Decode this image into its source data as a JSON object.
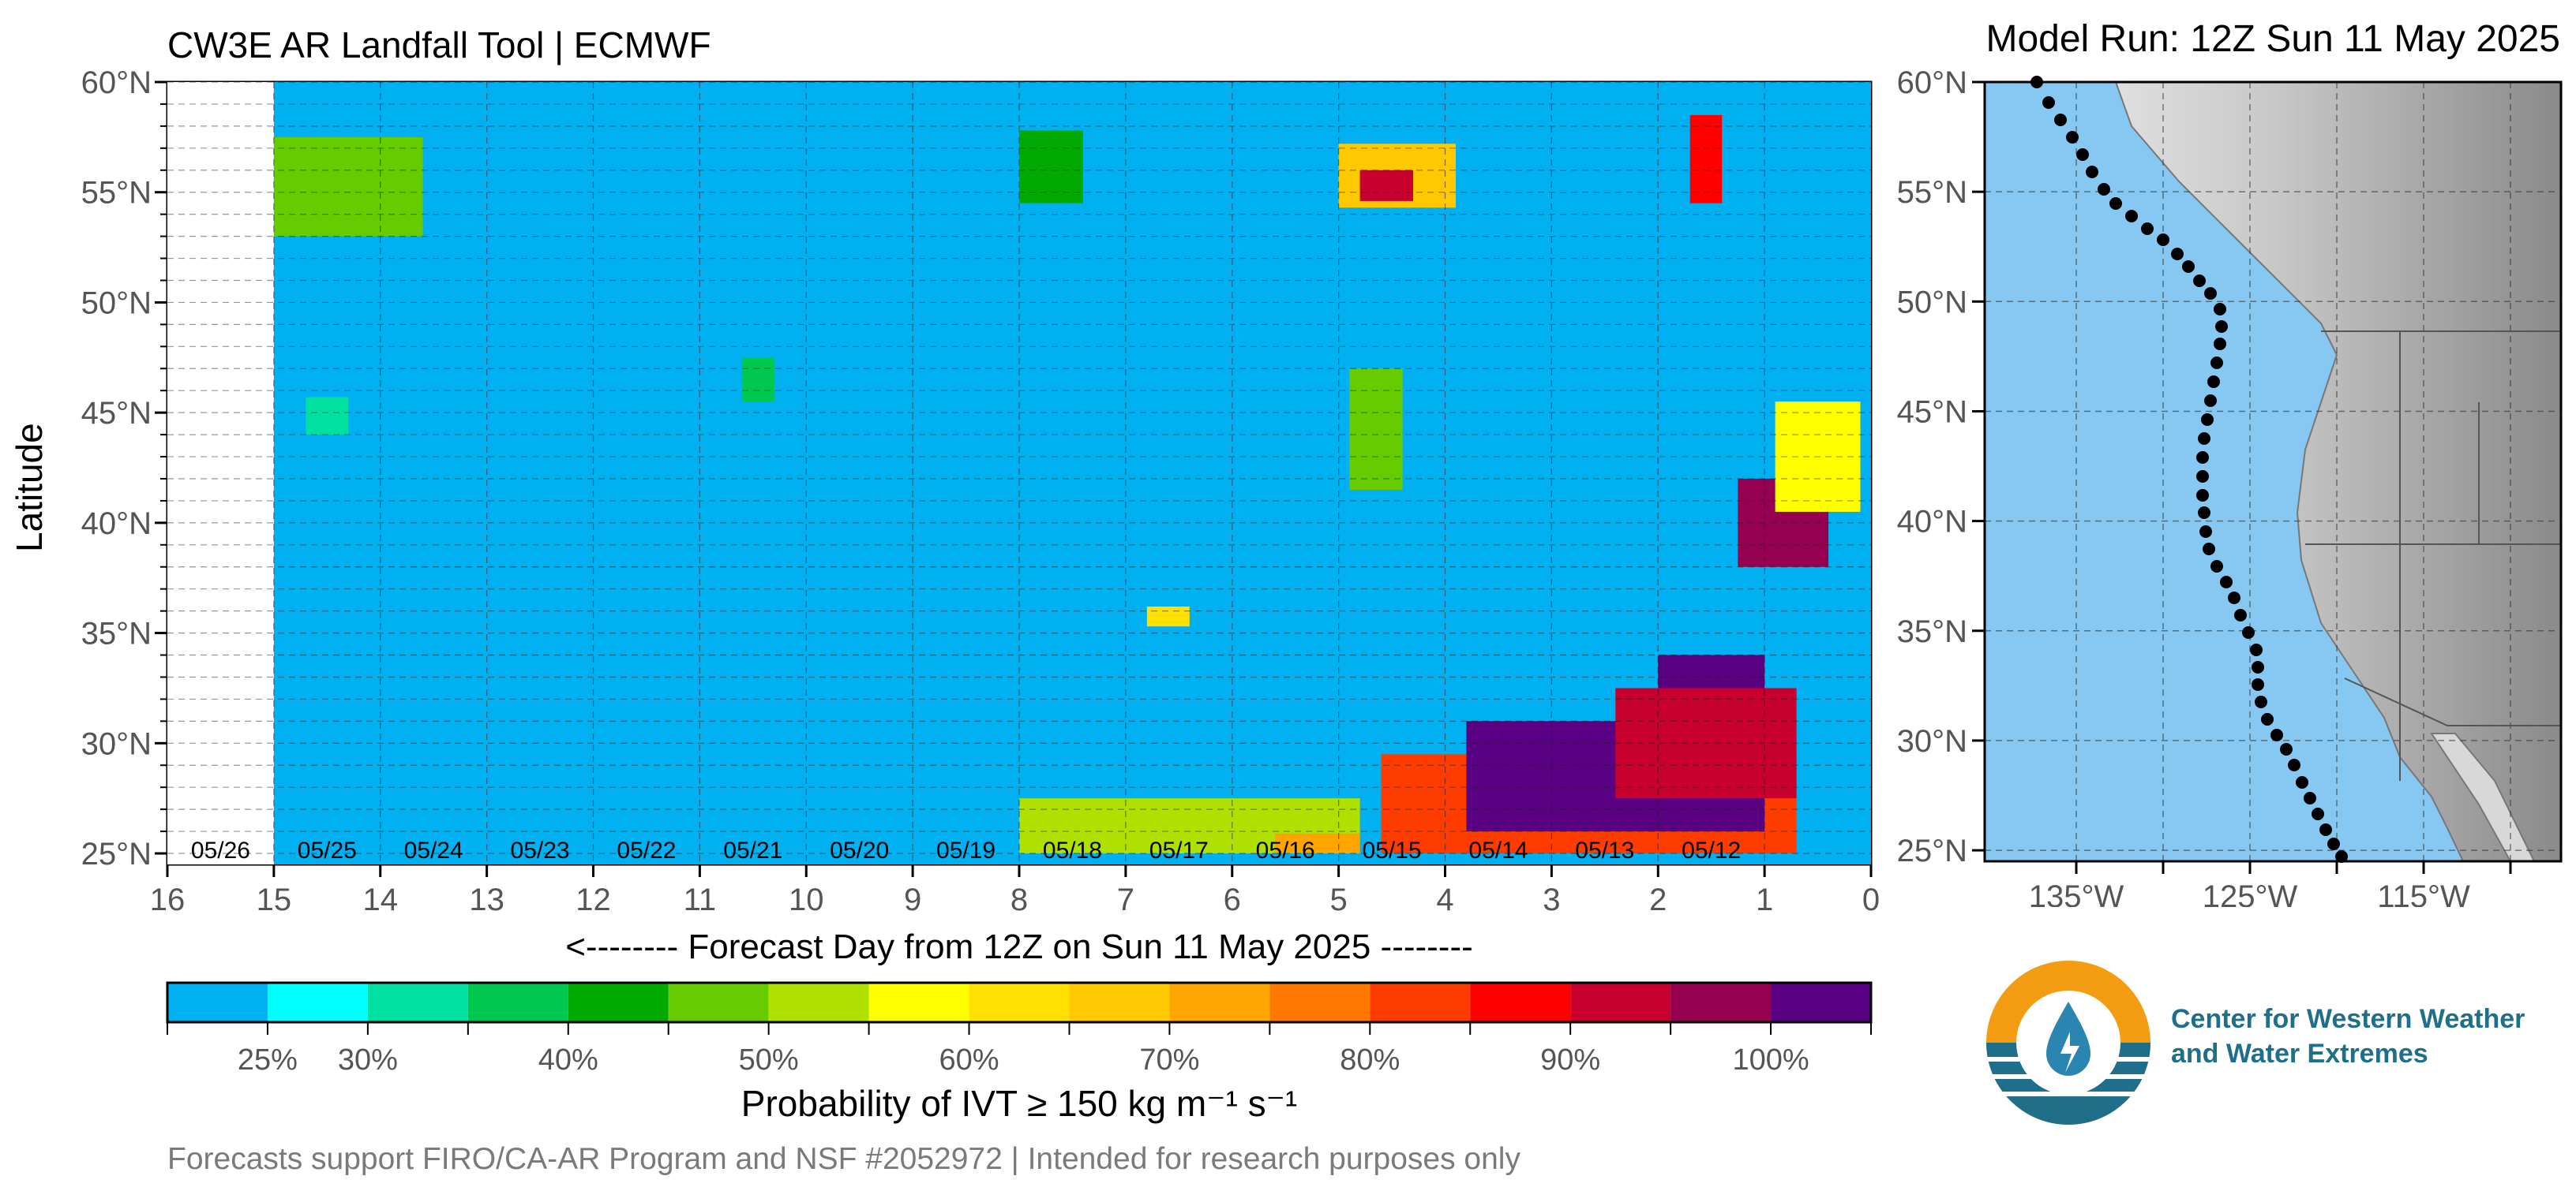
{
  "header": {
    "title": "CW3E AR Landfall Tool | ECMWF",
    "model_run": "Model Run: 12Z Sun 11 May 2025"
  },
  "axes": {
    "ylabel": "Latitude",
    "xlabel": "<-------- Forecast Day from 12Z on Sun 11 May 2025 --------"
  },
  "colorbar": {
    "label": "Probability of IVT ≥ 150 kg m⁻¹ s⁻¹",
    "tick_labels": [
      "25%",
      "30%",
      "40%",
      "50%",
      "60%",
      "70%",
      "80%",
      "90%",
      "100%"
    ],
    "colors": [
      "#00B0F0",
      "#00FFFF",
      "#00E0A0",
      "#00C84F",
      "#00AA00",
      "#66CC00",
      "#B0E000",
      "#FFFF00",
      "#FFE000",
      "#FFC800",
      "#FFA500",
      "#FF7800",
      "#FF3C00",
      "#FF0000",
      "#C8002D",
      "#960050",
      "#5A0082"
    ]
  },
  "footer": "Forecasts support FIRO/CA-AR Program and NSF #2052972 | Intended for research purposes only",
  "logo": {
    "line1": "Center for Western Weather",
    "line2": "and Water Extremes"
  },
  "map": {
    "lat_labels": [
      "60°N",
      "55°N",
      "50°N",
      "45°N",
      "40°N",
      "35°N",
      "30°N",
      "25°N"
    ],
    "lon_labels": [
      "135°W",
      "125°W",
      "115°W"
    ],
    "ocean_color": "#86C8F2"
  },
  "chart_data": {
    "type": "heatmap",
    "title": "CW3E AR Landfall Tool | ECMWF",
    "xlabel": "<-------- Forecast Day from 12Z on Sun 11 May 2025 --------",
    "ylabel": "Latitude",
    "x_range": [
      16,
      0
    ],
    "x_ticks": [
      16,
      15,
      14,
      13,
      12,
      11,
      10,
      9,
      8,
      7,
      6,
      5,
      4,
      3,
      2,
      1,
      0
    ],
    "y_range": [
      24.5,
      60
    ],
    "y_ticks": [
      60,
      55,
      50,
      45,
      40,
      35,
      30,
      25
    ],
    "y_tick_labels": [
      "60°N",
      "55°N",
      "50°N",
      "45°N",
      "40°N",
      "35°N",
      "30°N",
      "25°N"
    ],
    "date_labels": [
      {
        "day": 15.5,
        "label": "05/26"
      },
      {
        "day": 14.5,
        "label": "05/25"
      },
      {
        "day": 13.5,
        "label": "05/24"
      },
      {
        "day": 12.5,
        "label": "05/23"
      },
      {
        "day": 11.5,
        "label": "05/22"
      },
      {
        "day": 10.5,
        "label": "05/21"
      },
      {
        "day": 9.5,
        "label": "05/20"
      },
      {
        "day": 8.5,
        "label": "05/19"
      },
      {
        "day": 7.5,
        "label": "05/18"
      },
      {
        "day": 6.5,
        "label": "05/17"
      },
      {
        "day": 5.5,
        "label": "05/16"
      },
      {
        "day": 4.5,
        "label": "05/15"
      },
      {
        "day": 3.5,
        "label": "05/14"
      },
      {
        "day": 2.5,
        "label": "05/13"
      },
      {
        "day": 1.5,
        "label": "05/12"
      }
    ],
    "no_data_region": {
      "day_from": 16,
      "day_to": 15
    },
    "background_probability": 20,
    "features": [
      {
        "day_from": 15.0,
        "day_to": 13.6,
        "lat_from": 53.0,
        "lat_to": 57.5,
        "probability": 45
      },
      {
        "day_from": 14.6,
        "day_to": 14.2,
        "lat_from": 54.5,
        "lat_to": 56.5,
        "probability": 48
      },
      {
        "day_from": 14.7,
        "day_to": 14.3,
        "lat_from": 44.0,
        "lat_to": 45.7,
        "probability": 30
      },
      {
        "day_from": 8.0,
        "day_to": 7.4,
        "lat_from": 54.5,
        "lat_to": 57.8,
        "probability": 40
      },
      {
        "day_from": 5.0,
        "day_to": 3.9,
        "lat_from": 54.3,
        "lat_to": 57.2,
        "probability": 65
      },
      {
        "day_from": 4.8,
        "day_to": 4.3,
        "lat_from": 54.6,
        "lat_to": 56.0,
        "probability": 90
      },
      {
        "day_from": 4.9,
        "day_to": 4.4,
        "lat_from": 41.5,
        "lat_to": 47.0,
        "probability": 45
      },
      {
        "day_from": 10.6,
        "day_to": 10.3,
        "lat_from": 45.5,
        "lat_to": 47.5,
        "probability": 35
      },
      {
        "day_from": 6.8,
        "day_to": 6.4,
        "lat_from": 35.3,
        "lat_to": 36.2,
        "probability": 60
      },
      {
        "day_from": 1.7,
        "day_to": 1.4,
        "lat_from": 54.5,
        "lat_to": 58.5,
        "probability": 85
      },
      {
        "day_from": 1.25,
        "day_to": 0.4,
        "lat_from": 38.0,
        "lat_to": 42.0,
        "probability": 95
      },
      {
        "day_from": 0.9,
        "day_to": 0.1,
        "lat_from": 40.5,
        "lat_to": 45.5,
        "probability": 55
      },
      {
        "day_from": 8.0,
        "day_to": 4.8,
        "lat_from": 25.0,
        "lat_to": 27.5,
        "probability": 50
      },
      {
        "day_from": 5.6,
        "day_to": 4.8,
        "lat_from": 25.0,
        "lat_to": 25.9,
        "probability": 70
      },
      {
        "day_from": 4.6,
        "day_to": 0.7,
        "lat_from": 25.0,
        "lat_to": 29.5,
        "probability": 80
      },
      {
        "day_from": 3.8,
        "day_to": 1.0,
        "lat_from": 26.0,
        "lat_to": 31.0,
        "probability": 100
      },
      {
        "day_from": 2.0,
        "day_to": 1.0,
        "lat_from": 28.0,
        "lat_to": 34.0,
        "probability": 100
      },
      {
        "day_from": 2.4,
        "day_to": 0.7,
        "lat_from": 27.5,
        "lat_to": 32.5,
        "probability": 90
      }
    ]
  }
}
